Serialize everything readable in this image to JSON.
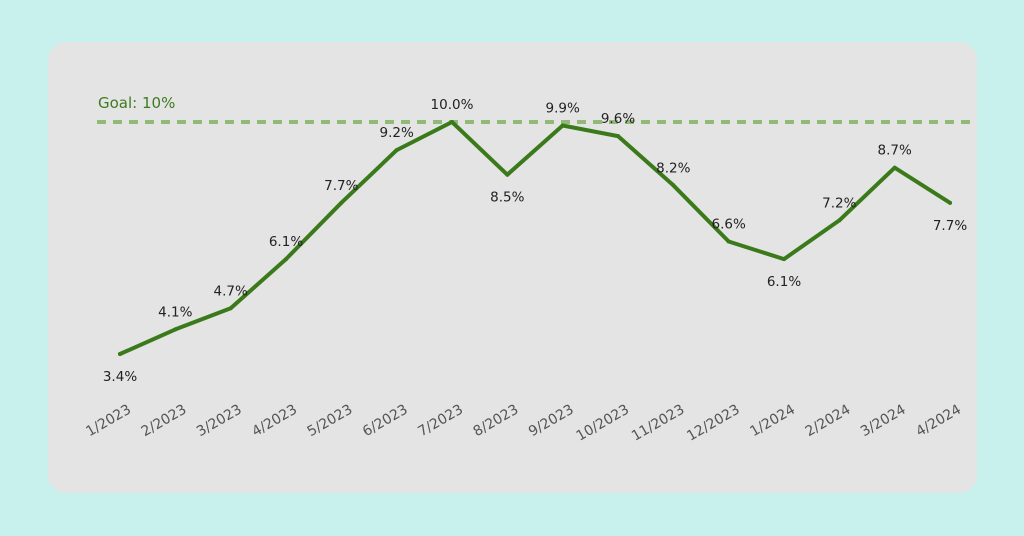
{
  "chart_data": {
    "type": "line",
    "categories": [
      "1/2023",
      "2/2023",
      "3/2023",
      "4/2023",
      "5/2023",
      "6/2023",
      "7/2023",
      "8/2023",
      "9/2023",
      "10/2023",
      "11/2023",
      "12/2023",
      "1/2024",
      "2/2024",
      "3/2024",
      "4/2024"
    ],
    "values": [
      3.4,
      4.1,
      4.7,
      6.1,
      7.7,
      9.2,
      10.0,
      8.5,
      9.9,
      9.6,
      8.2,
      6.6,
      6.1,
      7.2,
      8.7,
      7.7
    ],
    "data_labels": [
      "3.4%",
      "4.1%",
      "4.7%",
      "6.1%",
      "7.7%",
      "9.2%",
      "10.0%",
      "8.5%",
      "9.9%",
      "9.6%",
      "8.2%",
      "6.6%",
      "6.1%",
      "7.2%",
      "8.7%",
      "7.7%"
    ],
    "label_positions": [
      "below",
      "above",
      "above",
      "above",
      "above",
      "above",
      "above",
      "below",
      "above",
      "above",
      "above",
      "above",
      "below",
      "above",
      "above",
      "below"
    ],
    "goal": {
      "value": 10,
      "label": "Goal: 10%"
    },
    "ylim": [
      3.4,
      10.0
    ],
    "grid": false,
    "colors": {
      "line": "#3a7a1a",
      "goal": "#93b97a",
      "background": "#c8f1ee",
      "card": "#e4e4e4"
    }
  }
}
